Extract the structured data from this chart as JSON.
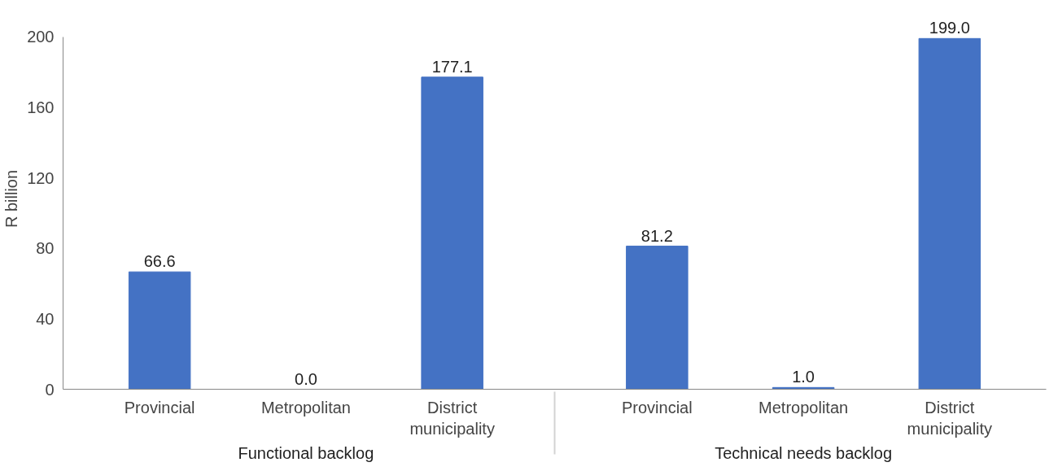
{
  "chart_data": {
    "type": "bar",
    "ylabel": "R billion",
    "categories": [
      "Provincial",
      "Metropolitan",
      "District\nmunicipality",
      "Provincial",
      "Metropolitan",
      "District\nmunicipality"
    ],
    "annotations": [
      "Functional backlog",
      "Technical needs backlog"
    ],
    "values": [
      66.6,
      0.0,
      177.1,
      81.2,
      1.0,
      199.0
    ],
    "value_labels": [
      "66.6",
      "0.0",
      "177.1",
      "81.2",
      "1.0",
      "199.0"
    ],
    "color": "#4472c4",
    "ylim": [
      0,
      200
    ],
    "yticks": [
      0,
      40,
      80,
      120,
      160,
      200
    ],
    "grid": false
  }
}
